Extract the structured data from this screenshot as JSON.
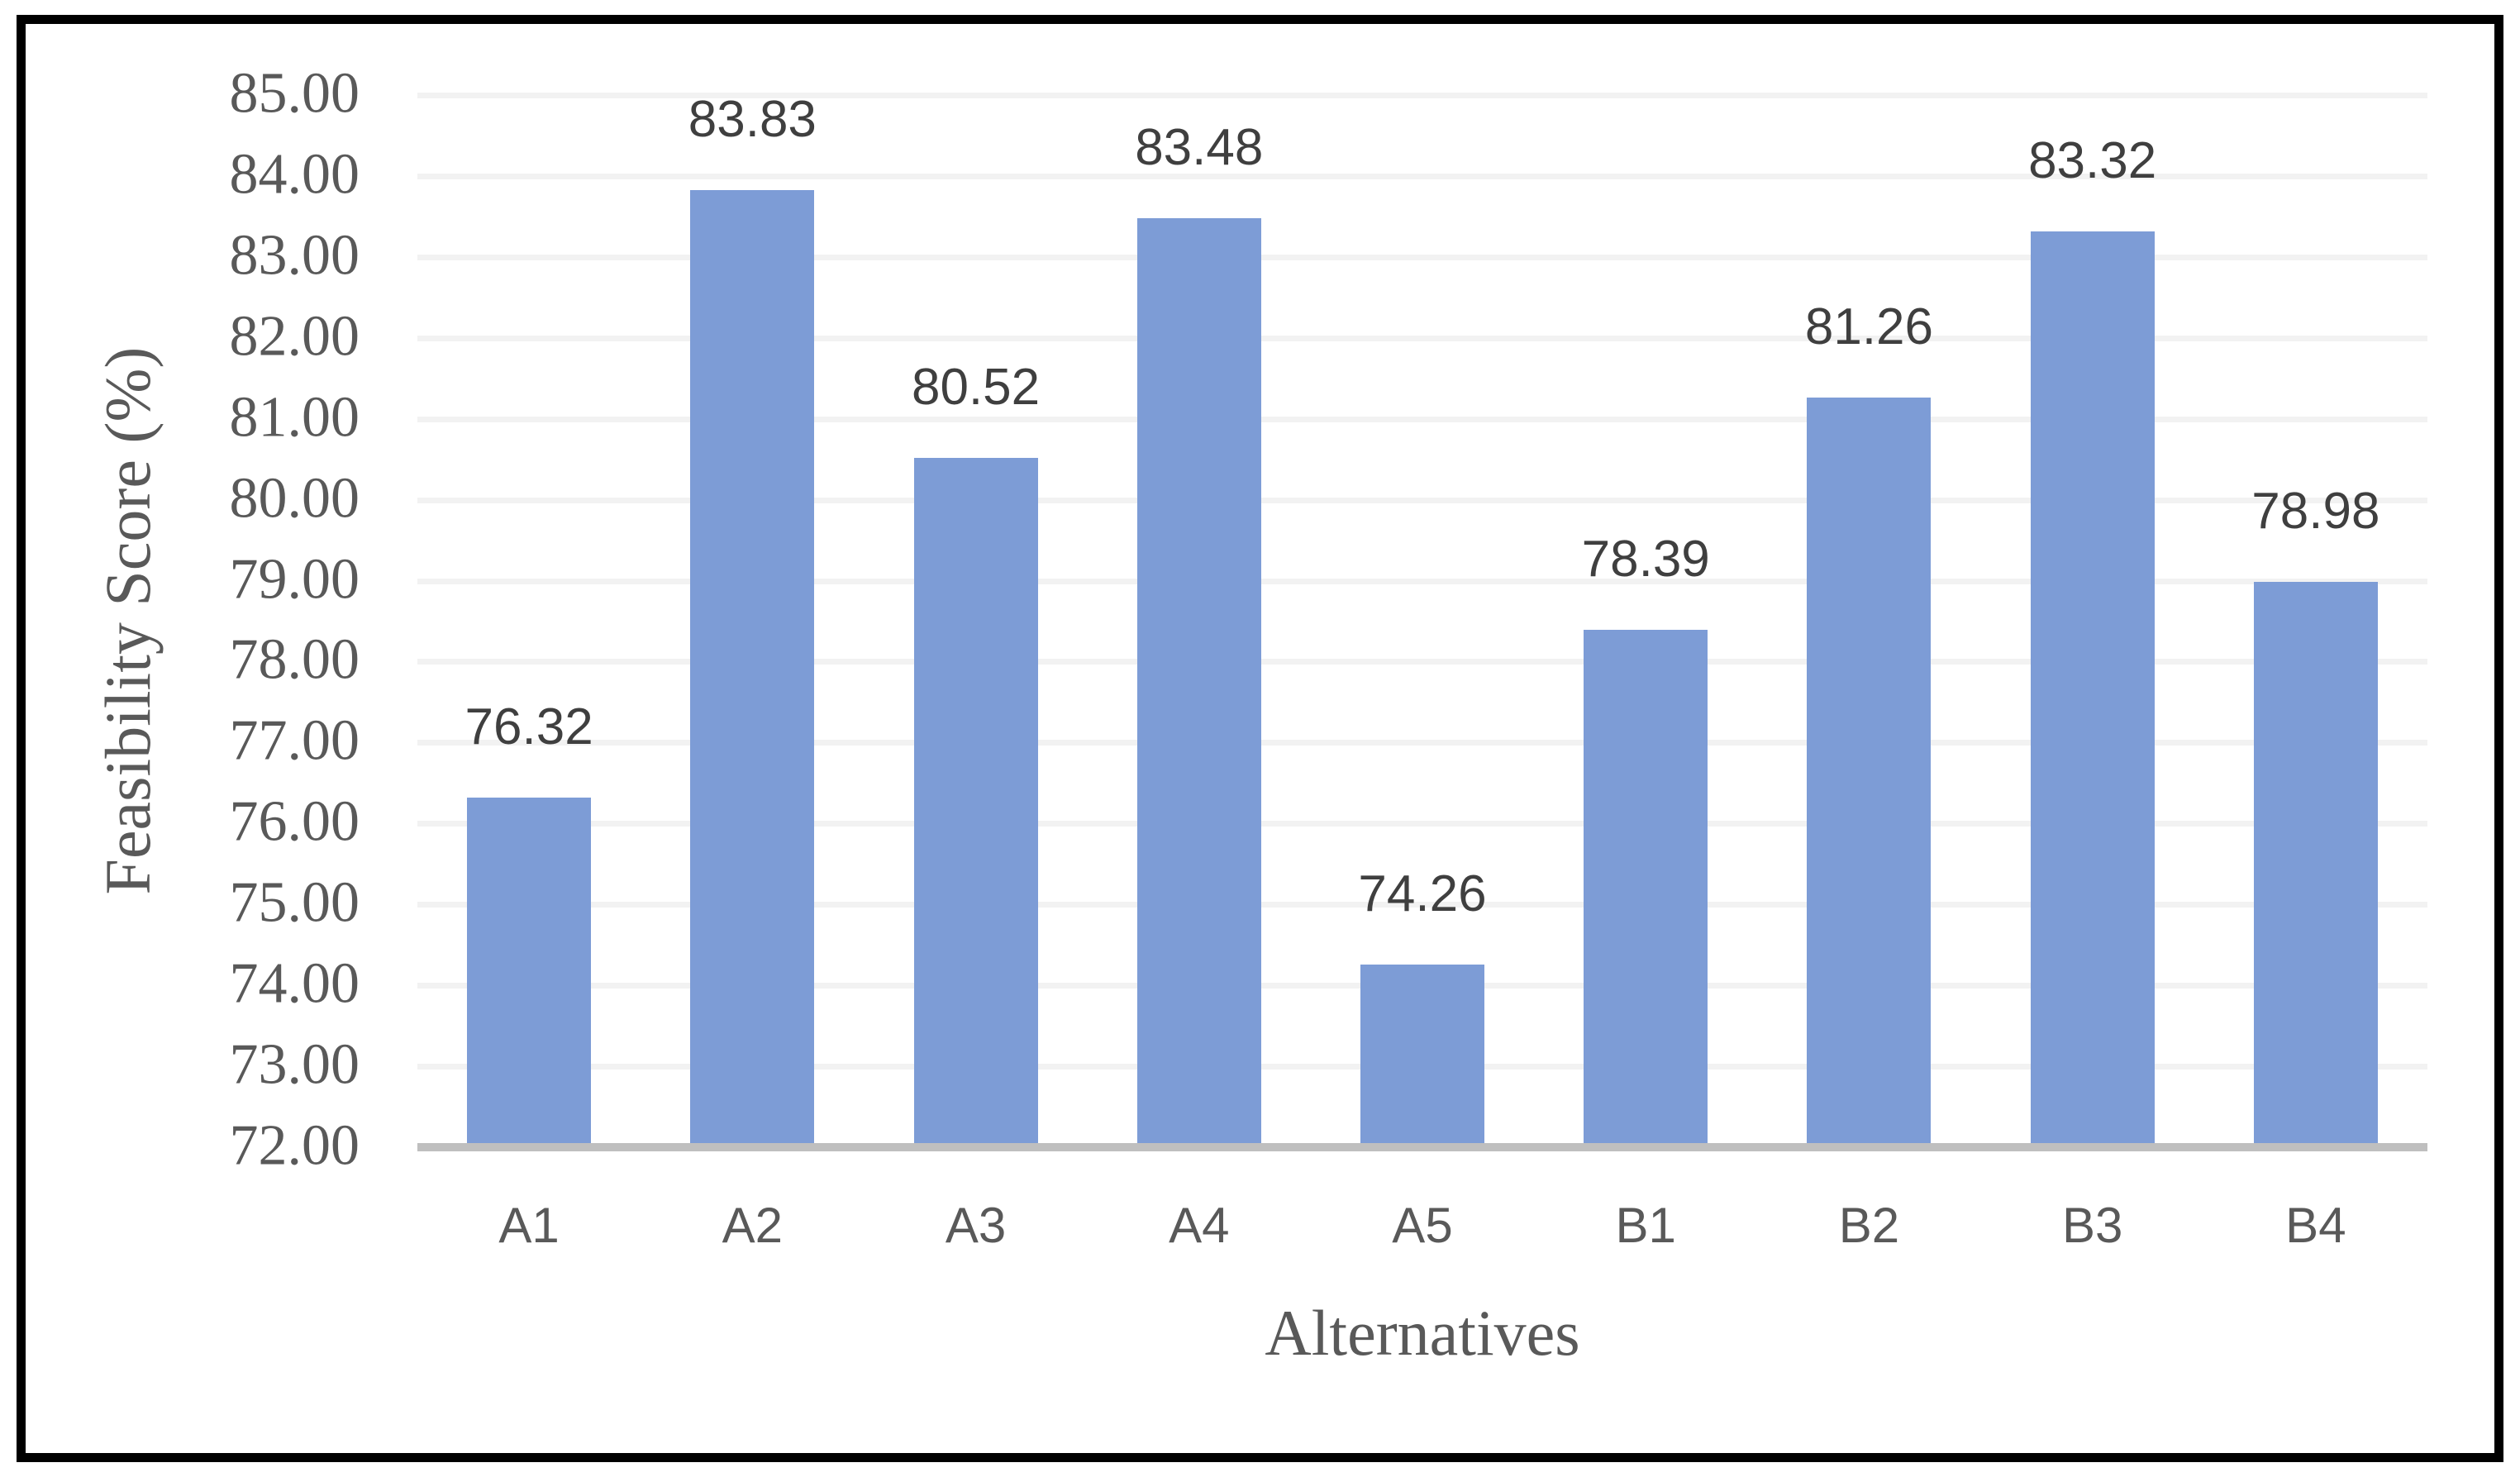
{
  "figure": {
    "background_color": "#ffffff",
    "border_color": "#000000"
  },
  "chart_data": {
    "type": "bar",
    "categories": [
      "A1",
      "A2",
      "A3",
      "A4",
      "A5",
      "B1",
      "B2",
      "B3",
      "B4"
    ],
    "values": [
      76.32,
      83.83,
      80.52,
      83.48,
      74.26,
      78.39,
      81.26,
      83.32,
      78.98
    ],
    "data_labels": [
      "76.32",
      "83.83",
      "80.52",
      "83.48",
      "74.26",
      "78.39",
      "81.26",
      "83.32",
      "78.98"
    ],
    "title": "",
    "xlabel": "Alternatives",
    "ylabel": "Feasibility Score (%)",
    "ylim": [
      72,
      85
    ],
    "ytick_step": 1,
    "ytick_labels": [
      "72.00",
      "73.00",
      "74.00",
      "75.00",
      "76.00",
      "77.00",
      "78.00",
      "79.00",
      "80.00",
      "81.00",
      "82.00",
      "83.00",
      "84.00",
      "85.00"
    ],
    "grid": "horizontal",
    "legend_position": "none",
    "bar_color": "#7d9cd6",
    "gridline_color": "#f2f2f2",
    "axis_line_color": "#bfbfbf",
    "tick_label_color": "#595959",
    "data_label_color": "#3f3f3f"
  }
}
